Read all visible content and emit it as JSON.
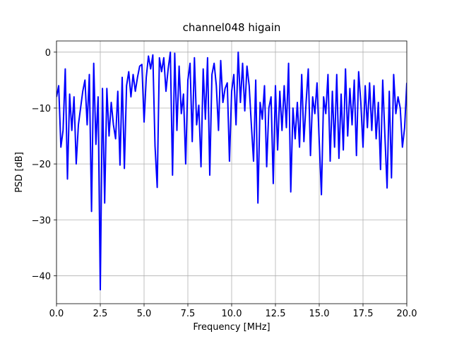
{
  "chart_data": {
    "type": "line",
    "title": "channel048 higain",
    "xlabel": "Frequency [MHz]",
    "ylabel": "PSD [dB]",
    "xlim": [
      0,
      20
    ],
    "ylim": [
      -45,
      2
    ],
    "xticks": [
      {
        "value": 0,
        "label": "0.0"
      },
      {
        "value": 2.5,
        "label": "2.5"
      },
      {
        "value": 5,
        "label": "5.0"
      },
      {
        "value": 7.5,
        "label": "7.5"
      },
      {
        "value": 10,
        "label": "10.0"
      },
      {
        "value": 12.5,
        "label": "12.5"
      },
      {
        "value": 15,
        "label": "15.0"
      },
      {
        "value": 17.5,
        "label": "17.5"
      },
      {
        "value": 20,
        "label": "20.0"
      }
    ],
    "yticks": [
      {
        "value": -40,
        "label": "−40"
      },
      {
        "value": -30,
        "label": "−30"
      },
      {
        "value": -20,
        "label": "−20"
      },
      {
        "value": -10,
        "label": "−10"
      },
      0
    ],
    "grid": true,
    "x": [
      0,
      0.125,
      0.25,
      0.375,
      0.5,
      0.625,
      0.75,
      0.875,
      1,
      1.125,
      1.25,
      1.375,
      1.5,
      1.625,
      1.75,
      1.875,
      2,
      2.125,
      2.25,
      2.375,
      2.5,
      2.625,
      2.75,
      2.875,
      3,
      3.125,
      3.25,
      3.375,
      3.5,
      3.625,
      3.75,
      3.875,
      4,
      4.125,
      4.25,
      4.375,
      4.5,
      4.625,
      4.75,
      4.875,
      5,
      5.125,
      5.25,
      5.375,
      5.5,
      5.625,
      5.75,
      5.875,
      6,
      6.125,
      6.25,
      6.375,
      6.5,
      6.625,
      6.75,
      6.875,
      7,
      7.125,
      7.25,
      7.375,
      7.5,
      7.625,
      7.75,
      7.875,
      8,
      8.125,
      8.25,
      8.375,
      8.5,
      8.625,
      8.75,
      8.875,
      9,
      9.125,
      9.25,
      9.375,
      9.5,
      9.625,
      9.75,
      9.875,
      10,
      10.125,
      10.25,
      10.375,
      10.5,
      10.625,
      10.75,
      10.875,
      11,
      11.125,
      11.25,
      11.375,
      11.5,
      11.625,
      11.75,
      11.875,
      12,
      12.125,
      12.25,
      12.375,
      12.5,
      12.625,
      12.75,
      12.875,
      13,
      13.125,
      13.25,
      13.375,
      13.5,
      13.625,
      13.75,
      13.875,
      14,
      14.125,
      14.25,
      14.375,
      14.5,
      14.625,
      14.75,
      14.875,
      15,
      15.125,
      15.25,
      15.375,
      15.5,
      15.625,
      15.75,
      15.875,
      16,
      16.125,
      16.25,
      16.375,
      16.5,
      16.625,
      16.75,
      16.875,
      17,
      17.125,
      17.25,
      17.375,
      17.5,
      17.625,
      17.75,
      17.875,
      18,
      18.125,
      18.25,
      18.375,
      18.5,
      18.625,
      18.75,
      18.875,
      19,
      19.125,
      19.25,
      19.375,
      19.5,
      19.625,
      19.75,
      19.875,
      20
    ],
    "series": [
      {
        "color": "#0000ff",
        "values": [
          -8,
          -6,
          -17,
          -14,
          -3,
          -22.7,
          -7.5,
          -14,
          -8,
          -20,
          -13,
          -10,
          -7,
          -5,
          -13,
          -4,
          -28.5,
          -2,
          -16.5,
          -8,
          -42.5,
          -6.5,
          -27,
          -6.5,
          -15,
          -9,
          -13,
          -15.5,
          -7,
          -20.2,
          -4.5,
          -20.8,
          -6,
          -3.5,
          -8,
          -4,
          -7,
          -4.5,
          -2.5,
          -2.2,
          -12.5,
          -4.5,
          -0.7,
          -3,
          -0.5,
          -16.8,
          -24.2,
          -1,
          -3.5,
          -1,
          -7,
          -3,
          0,
          -22,
          -0.2,
          -14,
          -2.5,
          -11,
          -7.5,
          -20,
          -5,
          -2,
          -16,
          -1,
          -13,
          -9.5,
          -20.5,
          -3,
          -12,
          -1,
          -22,
          -4,
          -2,
          -6,
          -14,
          -1.5,
          -9,
          -6.5,
          -5.5,
          -19.5,
          -7,
          -4,
          -13,
          0,
          -9,
          -2,
          -10.5,
          -2.5,
          -6,
          -13,
          -19.5,
          -5,
          -27,
          -9,
          -12,
          -6,
          -20.5,
          -10,
          -8,
          -23.5,
          -6,
          -17.5,
          -7,
          -14,
          -6,
          -13.5,
          -2,
          -25,
          -10,
          -15.5,
          -9,
          -17,
          -4,
          -16,
          -9,
          -3,
          -18.5,
          -8,
          -11,
          -5.5,
          -16,
          -25.5,
          -8,
          -11,
          -4,
          -19.5,
          -7,
          -17,
          -4,
          -19,
          -7.5,
          -17.5,
          -3,
          -15,
          -6.5,
          -13,
          -5,
          -18.5,
          -3.5,
          -9,
          -17,
          -6,
          -13.5,
          -5.5,
          -14,
          -6,
          -15.5,
          -9,
          -21,
          -5,
          -15,
          -24.3,
          -7,
          -22.5,
          -4,
          -11,
          -8,
          -10,
          -17,
          -13.5,
          -5.5
        ]
      }
    ]
  }
}
